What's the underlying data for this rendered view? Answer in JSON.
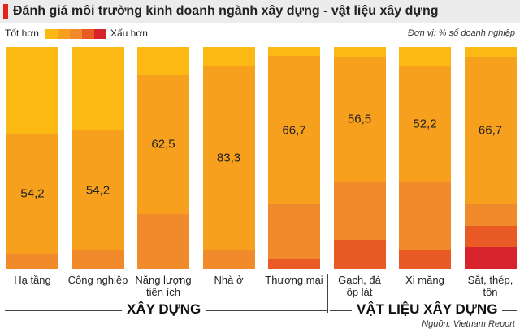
{
  "chart_data": {
    "type": "stacked_bar",
    "title": "Đánh giá môi trường kinh doanh ngành xây dựng - vật liệu xây dựng",
    "legend_start": "Tốt hơn",
    "legend_end": "Xấu hơn",
    "unit": "Đơn vị: % số doanh nghiệp",
    "source": "Nguồn: Vietnam Report",
    "group_labels": [
      "XÂY DỰNG",
      "VẬT LIỆU XÂY DỰNG"
    ],
    "categories": [
      "Hạ tầng",
      "Công nghiệp",
      "Năng lượng\ntiện ích",
      "Nhà ở",
      "Thương mại",
      "Gạch, đá\nốp lát",
      "Xi măng",
      "Sắt, thép,\ntôn"
    ],
    "ylim": [
      0,
      100
    ],
    "series": [
      {
        "color": "#fdb913",
        "values": [
          39.0,
          37.5,
          12.5,
          8.4,
          4.1,
          4.3,
          8.7,
          4.2
        ]
      },
      {
        "color": "#f7a01e",
        "values": [
          54.2,
          54.2,
          62.5,
          83.3,
          66.7,
          56.5,
          52.2,
          66.7
        ],
        "value_labels": [
          "54,2",
          "54,2",
          "62,5",
          "83,3",
          "66,7",
          "56,5",
          "52,2",
          "66,7"
        ]
      },
      {
        "color": "#f08a2a",
        "values": [
          6.8,
          8.3,
          25.0,
          8.3,
          25.0,
          26.1,
          30.4,
          9.7
        ]
      },
      {
        "color": "#ea5a25",
        "values": [
          0,
          0,
          0,
          0,
          4.2,
          13.1,
          8.7,
          9.7
        ]
      },
      {
        "color": "#d7232b",
        "values": [
          0,
          0,
          0,
          0,
          0,
          0,
          0,
          9.7
        ]
      }
    ]
  }
}
